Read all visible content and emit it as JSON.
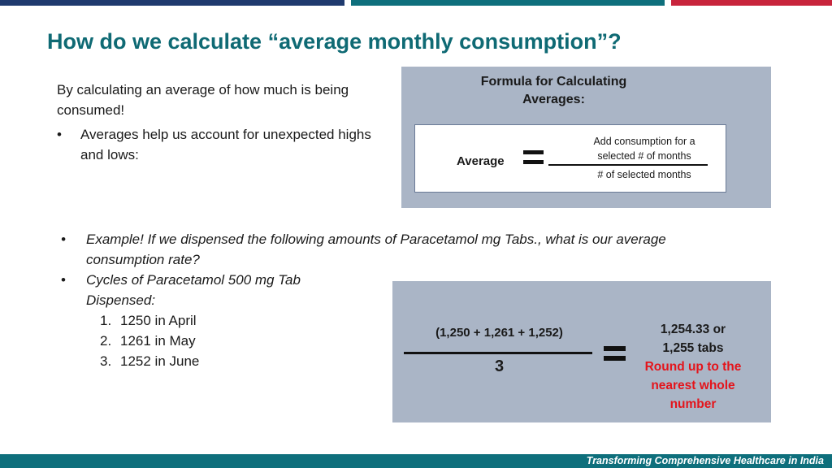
{
  "slide": {
    "title": "How do we calculate “average monthly consumption”?"
  },
  "intro": {
    "paragraph": "By calculating an average of how much is being consumed!",
    "bullet_symbol": "•",
    "bullet": "Averages help us account for unexpected highs and lows:"
  },
  "formula": {
    "title_line1": "Formula for Calculating",
    "title_line2": "Averages:",
    "left_label": "Average",
    "numerator_line1": "Add consumption for a",
    "numerator_line2": "selected # of months",
    "denominator": "# of selected months"
  },
  "example": {
    "bullet_symbol": "•",
    "question": "Example! If we dispensed the following amounts of Paracetamol  mg Tabs., what is our average consumption rate?",
    "cycles_line1": "Cycles of Paracetamol  500 mg Tab",
    "cycles_line2": "Dispensed:",
    "items": [
      {
        "num": "1.",
        "text": "1250 in April"
      },
      {
        "num": "2.",
        "text": "1261 in May"
      },
      {
        "num": "3.",
        "text": "1252 in June"
      }
    ]
  },
  "calculation": {
    "numerator": "(1,250 + 1,261 + 1,252)",
    "denominator": "3",
    "result_line1": "1,254.33 or",
    "result_line2": "1,255 tabs",
    "note_line1": "Round up to the",
    "note_line2": "nearest whole",
    "note_line3": "number",
    "note_color": "#e4141b"
  },
  "footer": {
    "tagline": "Transforming Comprehensive Healthcare in India"
  },
  "colors": {
    "title": "#0f6a74",
    "band_navy": "#1f3a6e",
    "band_teal": "#0e6f7c",
    "band_red": "#c8243c",
    "box_fill": "#aab5c6"
  }
}
